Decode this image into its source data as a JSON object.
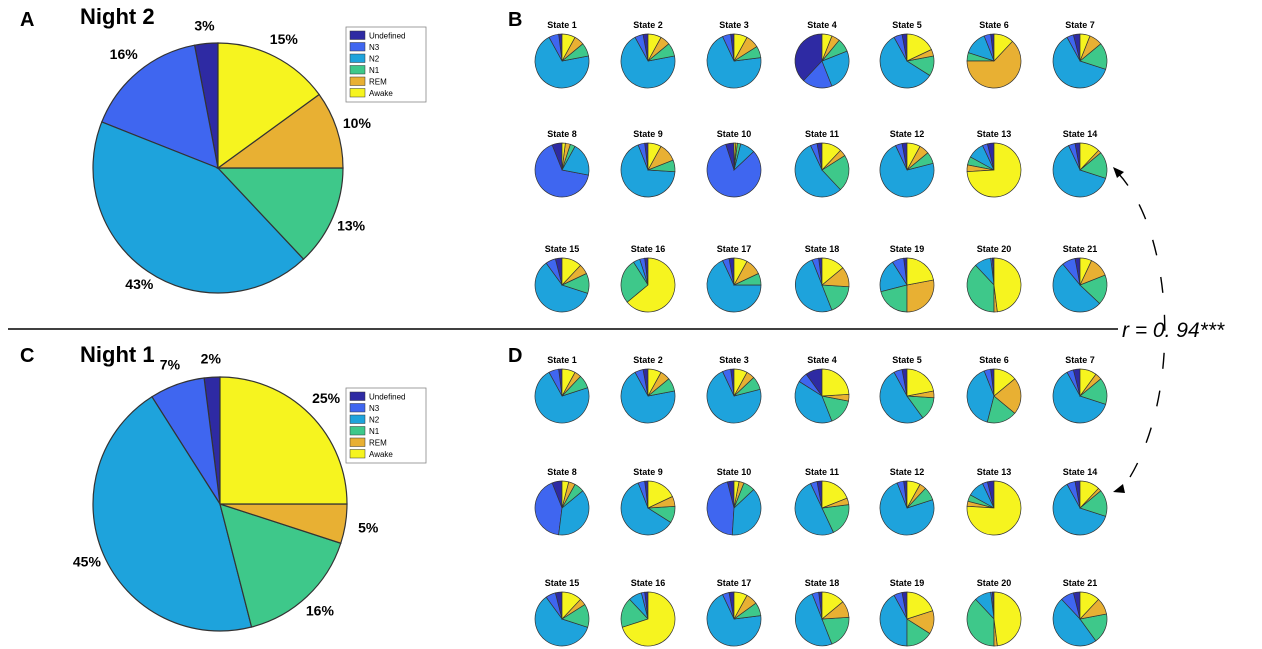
{
  "colors": {
    "Undefined": "#2e2aa3",
    "N3": "#3f66f0",
    "N2": "#1ea3dc",
    "N1": "#3ec88a",
    "REM": "#e8b033",
    "Awake": "#f6f41f"
  },
  "legend": [
    "Undefined",
    "N3",
    "N2",
    "N1",
    "REM",
    "Awake"
  ],
  "correlation_label": "r = 0. 94***",
  "chart_data": [
    {
      "type": "pie",
      "panel": "A",
      "title": "Night 2",
      "categories": [
        "Undefined",
        "N3",
        "N2",
        "N1",
        "REM",
        "Awake"
      ],
      "values": [
        3,
        16,
        43,
        13,
        10,
        15
      ],
      "labels": [
        "3%",
        "16%",
        "43%",
        "13%",
        "10%",
        "15%"
      ]
    },
    {
      "type": "pie",
      "panel": "B",
      "title": "",
      "categories": [
        "Undefined",
        "N3",
        "N2",
        "N1",
        "REM",
        "Awake"
      ],
      "states": [
        {
          "label": "State 1",
          "values": [
            2,
            6,
            70,
            8,
            6,
            8
          ]
        },
        {
          "label": "State 2",
          "values": [
            3,
            5,
            70,
            8,
            6,
            8
          ]
        },
        {
          "label": "State 3",
          "values": [
            2,
            5,
            70,
            7,
            8,
            8
          ]
        },
        {
          "label": "State 4",
          "values": [
            38,
            18,
            25,
            8,
            5,
            6
          ]
        },
        {
          "label": "State 5",
          "values": [
            3,
            5,
            58,
            12,
            4,
            18
          ]
        },
        {
          "label": "State 6",
          "values": [
            2,
            4,
            14,
            5,
            63,
            12
          ]
        },
        {
          "label": "State 7",
          "values": [
            4,
            4,
            62,
            16,
            8,
            6
          ]
        },
        {
          "label": "State 8",
          "values": [
            6,
            66,
            20,
            3,
            3,
            2
          ]
        },
        {
          "label": "State 9",
          "values": [
            2,
            4,
            68,
            7,
            11,
            8
          ]
        },
        {
          "label": "State 10",
          "values": [
            5,
            82,
            9,
            2,
            1,
            1
          ]
        },
        {
          "label": "State 11",
          "values": [
            3,
            4,
            55,
            22,
            4,
            12
          ]
        },
        {
          "label": "State 12",
          "values": [
            3,
            4,
            72,
            7,
            6,
            8
          ]
        },
        {
          "label": "State 13",
          "values": [
            4,
            3,
            10,
            5,
            4,
            74
          ]
        },
        {
          "label": "State 14",
          "values": [
            3,
            4,
            63,
            16,
            2,
            12
          ]
        },
        {
          "label": "State 15",
          "values": [
            4,
            6,
            60,
            12,
            6,
            12
          ]
        },
        {
          "label": "State 16",
          "values": [
            2,
            3,
            4,
            27,
            0,
            64
          ]
        },
        {
          "label": "State 17",
          "values": [
            3,
            4,
            68,
            7,
            10,
            8
          ]
        },
        {
          "label": "State 18",
          "values": [
            2,
            4,
            50,
            18,
            12,
            14
          ]
        },
        {
          "label": "State 19",
          "values": [
            2,
            7,
            20,
            21,
            28,
            22
          ]
        },
        {
          "label": "State 20",
          "values": [
            1,
            1,
            10,
            38,
            2,
            48
          ]
        },
        {
          "label": "State 21",
          "values": [
            3,
            8,
            52,
            18,
            12,
            7
          ]
        }
      ]
    },
    {
      "type": "pie",
      "panel": "C",
      "title": "Night 1",
      "categories": [
        "Undefined",
        "N3",
        "N2",
        "N1",
        "REM",
        "Awake"
      ],
      "values": [
        2,
        7,
        45,
        16,
        5,
        25
      ],
      "labels": [
        "2%",
        "7%",
        "45%",
        "16%",
        "5%",
        "25%"
      ]
    },
    {
      "type": "pie",
      "panel": "D",
      "title": "",
      "categories": [
        "Undefined",
        "N3",
        "N2",
        "N1",
        "REM",
        "Awake"
      ],
      "states": [
        {
          "label": "State 1",
          "values": [
            2,
            6,
            72,
            8,
            4,
            8
          ]
        },
        {
          "label": "State 2",
          "values": [
            3,
            5,
            70,
            8,
            6,
            8
          ]
        },
        {
          "label": "State 3",
          "values": [
            2,
            5,
            72,
            8,
            5,
            8
          ]
        },
        {
          "label": "State 4",
          "values": [
            10,
            6,
            40,
            16,
            4,
            24
          ]
        },
        {
          "label": "State 5",
          "values": [
            3,
            5,
            52,
            14,
            4,
            22
          ]
        },
        {
          "label": "State 6",
          "values": [
            2,
            4,
            40,
            18,
            22,
            14
          ]
        },
        {
          "label": "State 7",
          "values": [
            4,
            4,
            62,
            16,
            4,
            10
          ]
        },
        {
          "label": "State 8",
          "values": [
            6,
            42,
            38,
            6,
            4,
            4
          ]
        },
        {
          "label": "State 9",
          "values": [
            2,
            4,
            60,
            10,
            6,
            18
          ]
        },
        {
          "label": "State 10",
          "values": [
            4,
            45,
            38,
            7,
            3,
            3
          ]
        },
        {
          "label": "State 11",
          "values": [
            3,
            4,
            50,
            20,
            4,
            19
          ]
        },
        {
          "label": "State 12",
          "values": [
            2,
            4,
            74,
            8,
            4,
            8
          ]
        },
        {
          "label": "State 13",
          "values": [
            4,
            3,
            10,
            4,
            3,
            76
          ]
        },
        {
          "label": "State 14",
          "values": [
            3,
            5,
            62,
            16,
            2,
            12
          ]
        },
        {
          "label": "State 15",
          "values": [
            4,
            6,
            60,
            14,
            4,
            12
          ]
        },
        {
          "label": "State 16",
          "values": [
            2,
            2,
            8,
            18,
            0,
            70
          ]
        },
        {
          "label": "State 17",
          "values": [
            3,
            4,
            70,
            8,
            7,
            8
          ]
        },
        {
          "label": "State 18",
          "values": [
            2,
            4,
            50,
            20,
            10,
            14
          ]
        },
        {
          "label": "State 19",
          "values": [
            3,
            5,
            42,
            16,
            14,
            20
          ]
        },
        {
          "label": "State 20",
          "values": [
            1,
            1,
            10,
            38,
            2,
            48
          ]
        },
        {
          "label": "State 21",
          "values": [
            4,
            8,
            48,
            18,
            10,
            12
          ]
        }
      ]
    }
  ]
}
